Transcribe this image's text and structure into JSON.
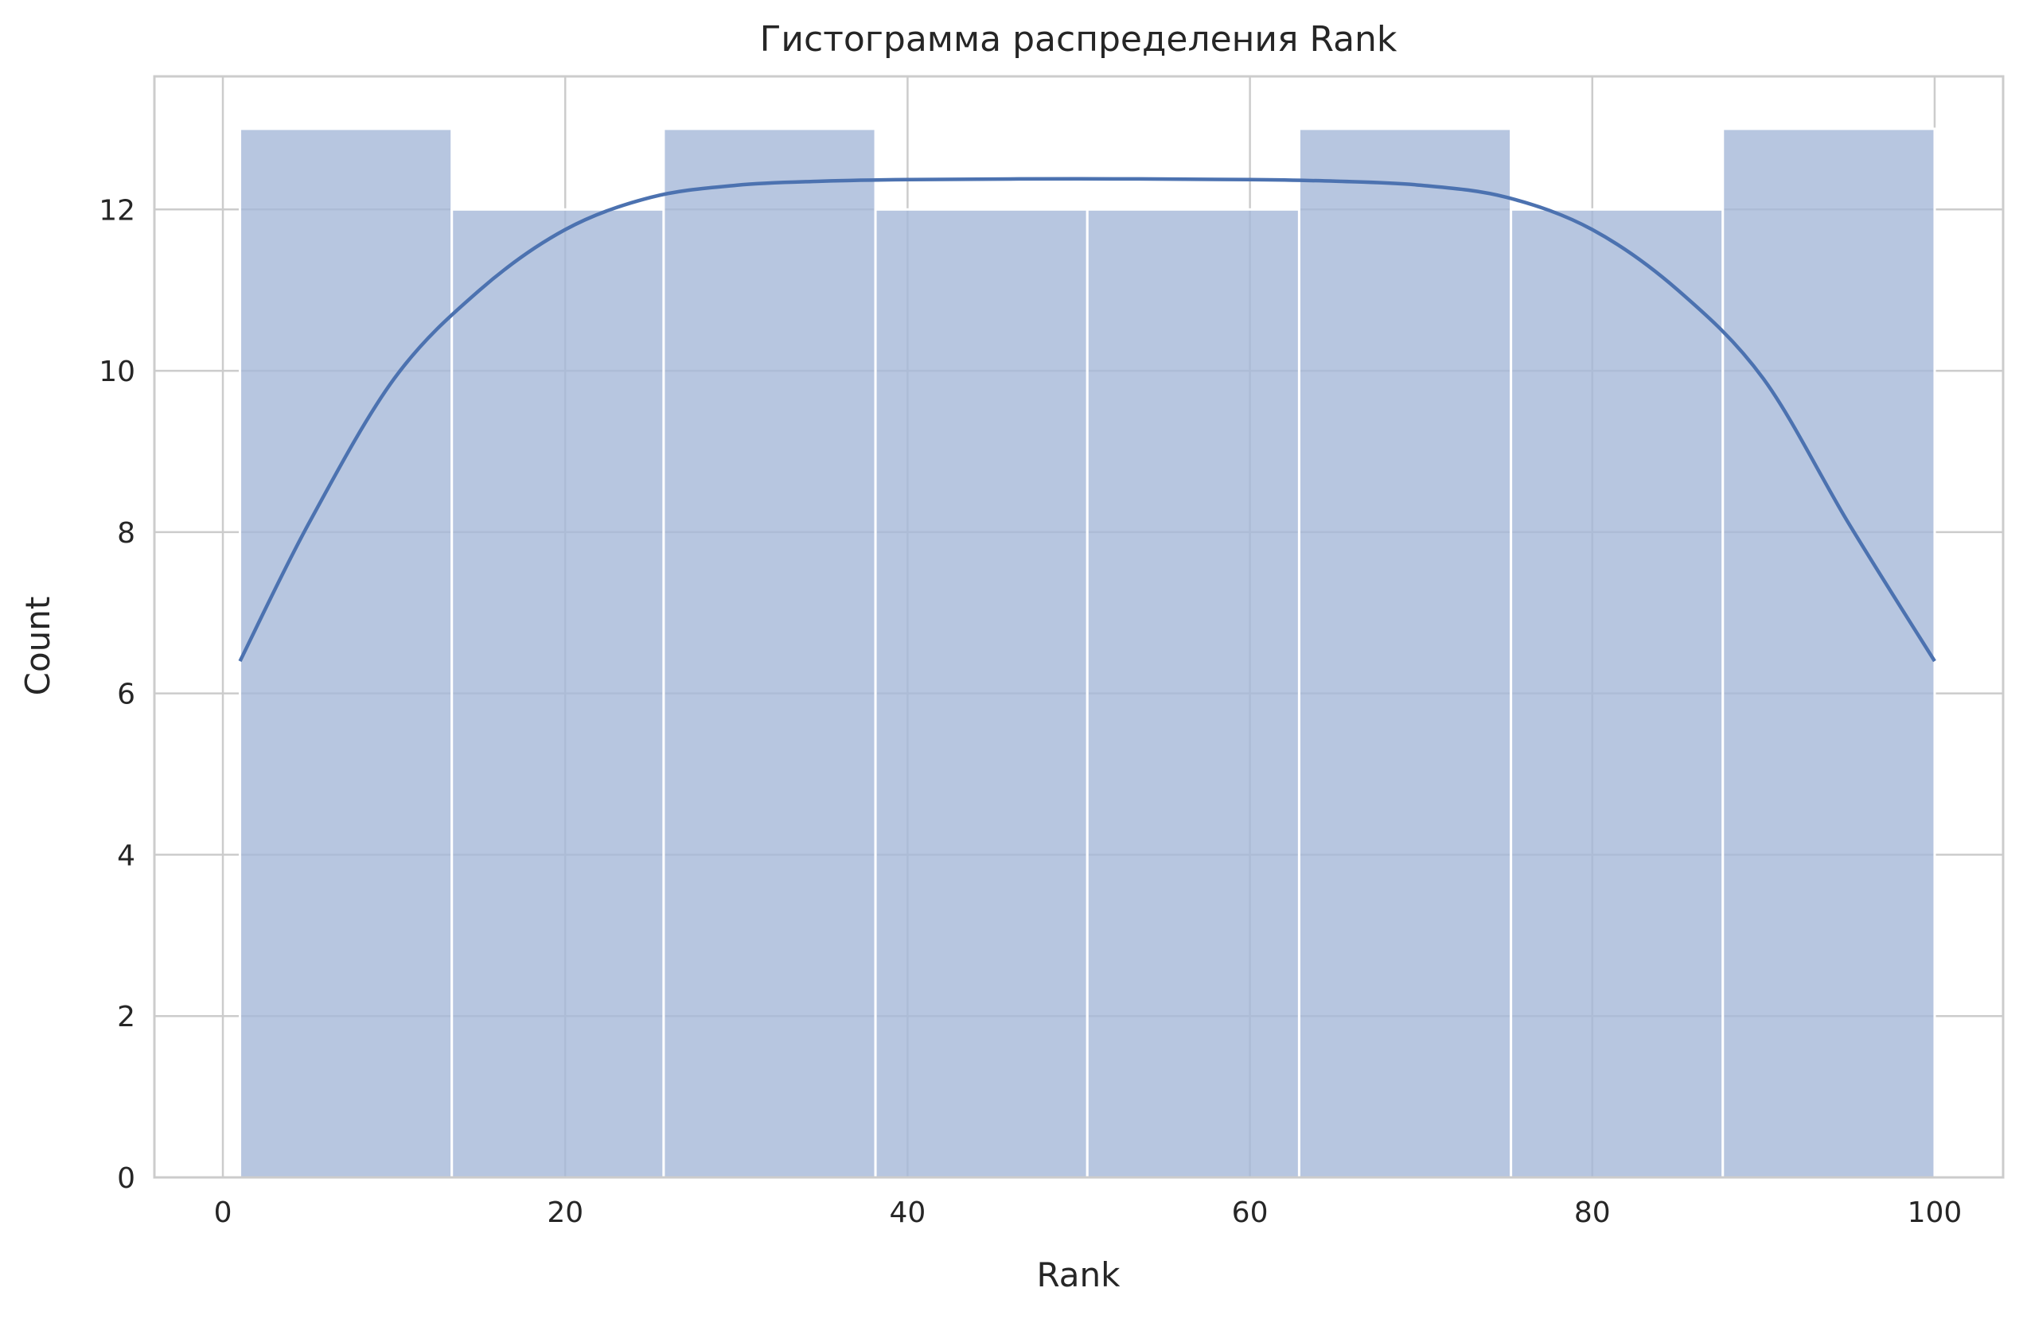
{
  "chart_data": {
    "type": "bar",
    "subtype": "histogram_with_kde",
    "title": "Гистограмма распределения Rank",
    "xlabel": "Rank",
    "ylabel": "Count",
    "xlim": [
      -4,
      104
    ],
    "ylim": [
      0,
      13.65
    ],
    "x_ticks": [
      0,
      20,
      40,
      60,
      80,
      100
    ],
    "y_ticks": [
      0,
      2,
      4,
      6,
      8,
      10,
      12
    ],
    "grid": true,
    "bins": [
      {
        "start": 1,
        "end": 13.375,
        "count": 13
      },
      {
        "start": 13.375,
        "end": 25.75,
        "count": 12
      },
      {
        "start": 25.75,
        "end": 38.125,
        "count": 13
      },
      {
        "start": 38.125,
        "end": 50.5,
        "count": 12
      },
      {
        "start": 50.5,
        "end": 62.875,
        "count": 12
      },
      {
        "start": 62.875,
        "end": 75.25,
        "count": 13
      },
      {
        "start": 75.25,
        "end": 87.625,
        "count": 12
      },
      {
        "start": 87.625,
        "end": 100,
        "count": 13
      }
    ],
    "kde": {
      "x": [
        1,
        5,
        10,
        15,
        20,
        25,
        30,
        35,
        40,
        50,
        60,
        65,
        70,
        75,
        80,
        85,
        90,
        95,
        100
      ],
      "y": [
        6.4,
        8.1,
        9.9,
        11.0,
        11.75,
        12.15,
        12.3,
        12.35,
        12.37,
        12.38,
        12.37,
        12.35,
        12.3,
        12.15,
        11.75,
        11.0,
        9.9,
        8.1,
        6.4
      ]
    },
    "colors": {
      "bar_fill": "#a5b8d8",
      "bar_edge": "#ffffff",
      "kde_line": "#4c72b0",
      "grid": "#cccccc",
      "frame": "#cccccc"
    }
  }
}
